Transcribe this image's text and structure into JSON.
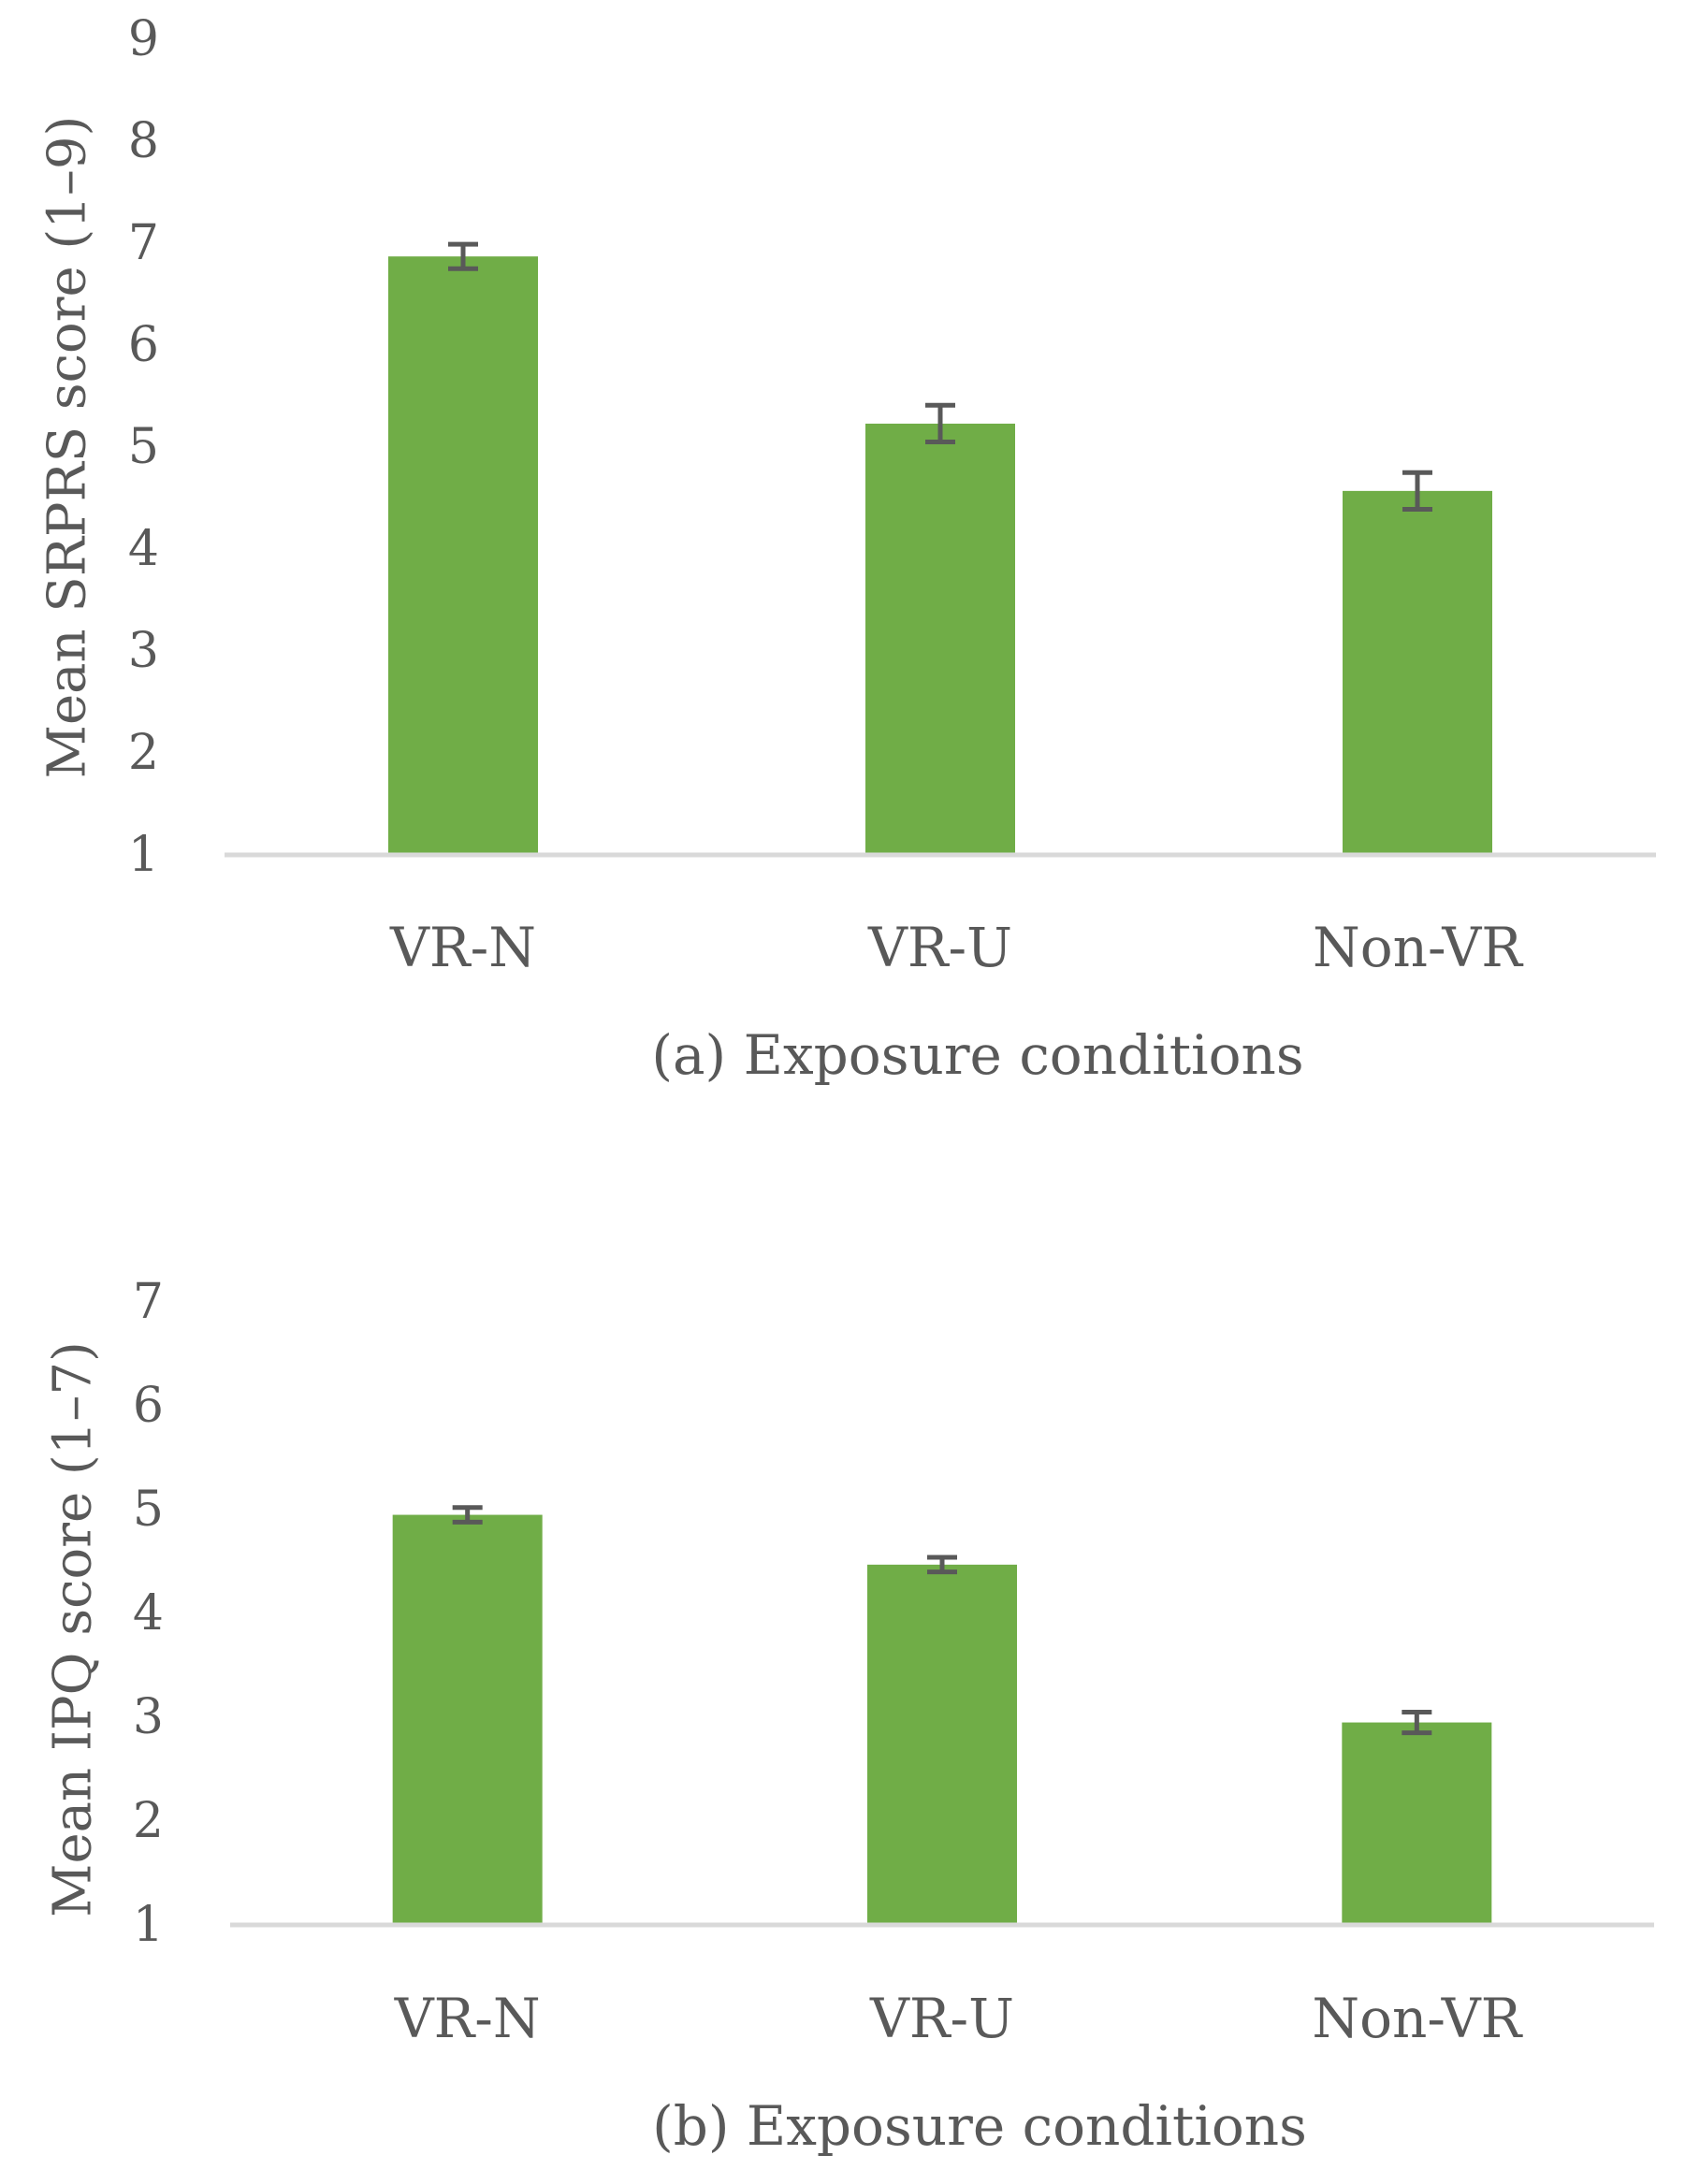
{
  "colors": {
    "bar": "#70AD47",
    "error_bar": "#595959",
    "axis_line": "#D9D9D9",
    "text": "#595959"
  },
  "chart_data": [
    {
      "type": "bar",
      "categories": [
        "VR-N",
        "VR-U",
        "Non-VR"
      ],
      "values": [
        6.87,
        5.23,
        4.57
      ],
      "errors": [
        0.12,
        0.18,
        0.18
      ],
      "ylabel": "Mean SRPRS score (1–9)",
      "xlabel": "(a) Exposure conditions",
      "ylim": [
        1,
        9
      ],
      "yticks": [
        1,
        2,
        3,
        4,
        5,
        6,
        7,
        8,
        9
      ],
      "grid": false
    },
    {
      "type": "bar",
      "categories": [
        "VR-N",
        "VR-U",
        "Non-VR"
      ],
      "values": [
        4.95,
        4.47,
        2.95
      ],
      "errors": [
        0.07,
        0.07,
        0.1
      ],
      "ylabel": "Mean IPQ score (1–7)",
      "xlabel": "(b) Exposure conditions",
      "ylim": [
        1,
        7
      ],
      "yticks": [
        1,
        2,
        3,
        4,
        5,
        6,
        7
      ],
      "grid": false
    }
  ]
}
